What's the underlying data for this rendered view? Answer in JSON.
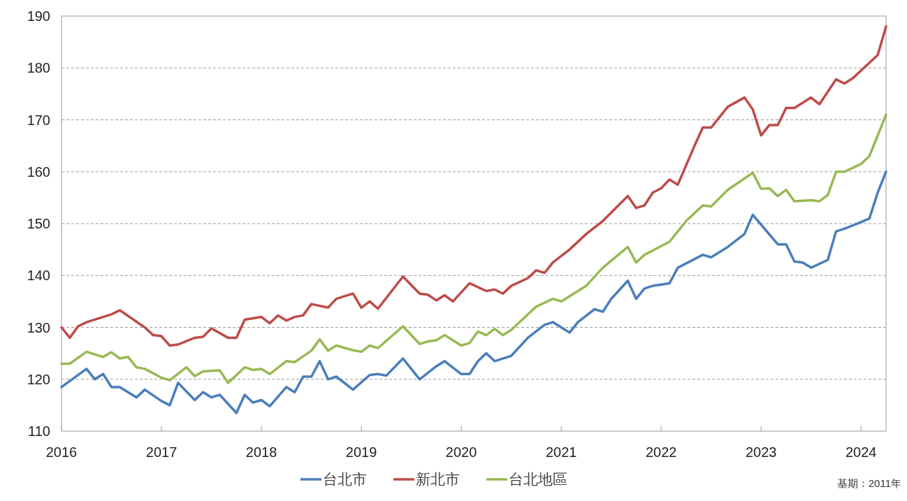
{
  "chart_data": {
    "type": "line",
    "ylim": [
      110,
      190
    ],
    "yticks": [
      110,
      120,
      130,
      140,
      150,
      160,
      170,
      180,
      190
    ],
    "xlim": [
      "2016-01",
      "2024-04"
    ],
    "xticks": [
      {
        "value": "2016-01",
        "label": "2016"
      },
      {
        "value": "2017-01",
        "label": "2017"
      },
      {
        "value": "2018-01",
        "label": "2018"
      },
      {
        "value": "2019-01",
        "label": "2019"
      },
      {
        "value": "2020-01",
        "label": "2020"
      },
      {
        "value": "2021-01",
        "label": "2021"
      },
      {
        "value": "2022-01",
        "label": "2022"
      },
      {
        "value": "2023-01",
        "label": "2023"
      },
      {
        "value": "2024-01",
        "label": "2024"
      }
    ],
    "grid": "y",
    "legend": "bottom",
    "marker": "none",
    "line_style": "solid",
    "annotations": [
      "基期：2011年"
    ],
    "series": [
      {
        "name": "台北市",
        "color": "#4a7ebb",
        "x": [
          "2016-01",
          "2016-04",
          "2016-05",
          "2016-06",
          "2016-07",
          "2016-08",
          "2016-10",
          "2016-11",
          "2017-01",
          "2017-02",
          "2017-03",
          "2017-05",
          "2017-06",
          "2017-07",
          "2017-08",
          "2017-10",
          "2017-11",
          "2017-12",
          "2018-01",
          "2018-02",
          "2018-04",
          "2018-05",
          "2018-06",
          "2018-07",
          "2018-08",
          "2018-09",
          "2018-10",
          "2018-12",
          "2019-02",
          "2019-03",
          "2019-04",
          "2019-06",
          "2019-08",
          "2019-10",
          "2019-11",
          "2020-01",
          "2020-02",
          "2020-03",
          "2020-04",
          "2020-05",
          "2020-07",
          "2020-09",
          "2020-11",
          "2020-12",
          "2021-02",
          "2021-03",
          "2021-05",
          "2021-06",
          "2021-07",
          "2021-09",
          "2021-10",
          "2021-11",
          "2021-12",
          "2022-02",
          "2022-03",
          "2022-06",
          "2022-07",
          "2022-09",
          "2022-11",
          "2022-12",
          "2023-01",
          "2023-03",
          "2023-04",
          "2023-05",
          "2023-06",
          "2023-07",
          "2023-09",
          "2023-10",
          "2023-11",
          "2024-01",
          "2024-02",
          "2024-03",
          "2024-04"
        ],
        "values": [
          118.5,
          122,
          120,
          121,
          118.5,
          118.5,
          116.5,
          118,
          115.8,
          115,
          119.3,
          116,
          117.5,
          116.5,
          117,
          113.5,
          117,
          115.5,
          116,
          114.8,
          118.5,
          117.5,
          120.5,
          120.5,
          123.5,
          120,
          120.5,
          118,
          120.8,
          121,
          120.7,
          124,
          120,
          122.5,
          123.5,
          121,
          121,
          123.5,
          125,
          123.5,
          124.5,
          128,
          130.5,
          131,
          129,
          131,
          133.5,
          133,
          135.5,
          139,
          135.5,
          137.5,
          138,
          138.5,
          141.5,
          144,
          143.5,
          145.5,
          148,
          151.7,
          149.8,
          146,
          146,
          142.7,
          142.5,
          141.5,
          143,
          148.5,
          149,
          150.3,
          151,
          156,
          160
        ]
      },
      {
        "name": "新北市",
        "color": "#be4b48",
        "x": [
          "2016-01",
          "2016-02",
          "2016-03",
          "2016-04",
          "2016-06",
          "2016-07",
          "2016-08",
          "2016-11",
          "2016-12",
          "2017-01",
          "2017-02",
          "2017-03",
          "2017-05",
          "2017-06",
          "2017-07",
          "2017-09",
          "2017-10",
          "2017-11",
          "2018-01",
          "2018-02",
          "2018-03",
          "2018-04",
          "2018-05",
          "2018-06",
          "2018-07",
          "2018-09",
          "2018-10",
          "2018-12",
          "2019-01",
          "2019-02",
          "2019-03",
          "2019-06",
          "2019-08",
          "2019-09",
          "2019-10",
          "2019-11",
          "2019-12",
          "2020-02",
          "2020-04",
          "2020-05",
          "2020-06",
          "2020-07",
          "2020-09",
          "2020-10",
          "2020-11",
          "2020-12",
          "2021-02",
          "2021-04",
          "2021-06",
          "2021-09",
          "2021-10",
          "2021-11",
          "2021-12",
          "2022-01",
          "2022-02",
          "2022-03",
          "2022-05",
          "2022-06",
          "2022-07",
          "2022-09",
          "2022-11",
          "2022-12",
          "2023-01",
          "2023-02",
          "2023-03",
          "2023-04",
          "2023-05",
          "2023-07",
          "2023-08",
          "2023-10",
          "2023-11",
          "2023-12",
          "2024-01",
          "2024-03",
          "2024-04"
        ],
        "values": [
          130,
          128,
          130.2,
          131,
          132,
          132.5,
          133.3,
          130,
          128.5,
          128.3,
          126.5,
          126.7,
          128,
          128.2,
          129.8,
          128,
          128,
          131.5,
          132,
          130.8,
          132.3,
          131.3,
          132,
          132.3,
          134.5,
          133.8,
          135.5,
          136.5,
          133.8,
          135,
          133.6,
          139.8,
          136.5,
          136.3,
          135.2,
          136.2,
          135,
          138.5,
          137,
          137.3,
          136.5,
          138,
          139.5,
          141,
          140.5,
          142.5,
          145,
          148,
          150.5,
          155.3,
          153,
          153.5,
          156,
          156.8,
          158.5,
          157.5,
          165,
          168.5,
          168.5,
          172.5,
          174.3,
          172,
          167,
          169,
          169,
          172.3,
          172.3,
          174.3,
          173,
          177.8,
          177,
          178,
          179.5,
          182.5,
          188
        ]
      },
      {
        "name": "台北地區",
        "color": "#98b954",
        "x": [
          "2016-01",
          "2016-02",
          "2016-04",
          "2016-06",
          "2016-07",
          "2016-08",
          "2016-09",
          "2016-10",
          "2016-11",
          "2017-01",
          "2017-02",
          "2017-04",
          "2017-05",
          "2017-06",
          "2017-08",
          "2017-09",
          "2017-11",
          "2017-12",
          "2018-01",
          "2018-02",
          "2018-04",
          "2018-05",
          "2018-07",
          "2018-08",
          "2018-09",
          "2018-10",
          "2018-12",
          "2019-01",
          "2019-02",
          "2019-03",
          "2019-06",
          "2019-08",
          "2019-09",
          "2019-10",
          "2019-11",
          "2020-01",
          "2020-02",
          "2020-03",
          "2020-04",
          "2020-05",
          "2020-06",
          "2020-07",
          "2020-10",
          "2020-12",
          "2021-01",
          "2021-04",
          "2021-06",
          "2021-09",
          "2021-10",
          "2021-11",
          "2022-02",
          "2022-04",
          "2022-06",
          "2022-07",
          "2022-09",
          "2022-12",
          "2023-01",
          "2023-02",
          "2023-03",
          "2023-04",
          "2023-05",
          "2023-07",
          "2023-08",
          "2023-09",
          "2023-10",
          "2023-11",
          "2024-01",
          "2024-02",
          "2024-04"
        ],
        "values": [
          123,
          123,
          125.3,
          124.3,
          125.2,
          124,
          124.3,
          122.3,
          122,
          120.3,
          119.8,
          122.3,
          120.6,
          121.5,
          121.7,
          119.3,
          122.3,
          121.8,
          122,
          121,
          123.5,
          123.3,
          125.5,
          127.7,
          125.5,
          126.5,
          125.6,
          125.3,
          126.5,
          126,
          130.2,
          126.8,
          127.3,
          127.5,
          128.5,
          126.5,
          127,
          129.2,
          128.5,
          129.7,
          128.5,
          129.5,
          134,
          135.5,
          135,
          138,
          141.5,
          145.5,
          142.5,
          144,
          146.5,
          150.5,
          153.5,
          153.3,
          156.5,
          159.8,
          156.7,
          156.8,
          155.3,
          156.5,
          154.3,
          154.5,
          154.3,
          155.5,
          160,
          160,
          161.5,
          163,
          171
        ]
      }
    ]
  }
}
